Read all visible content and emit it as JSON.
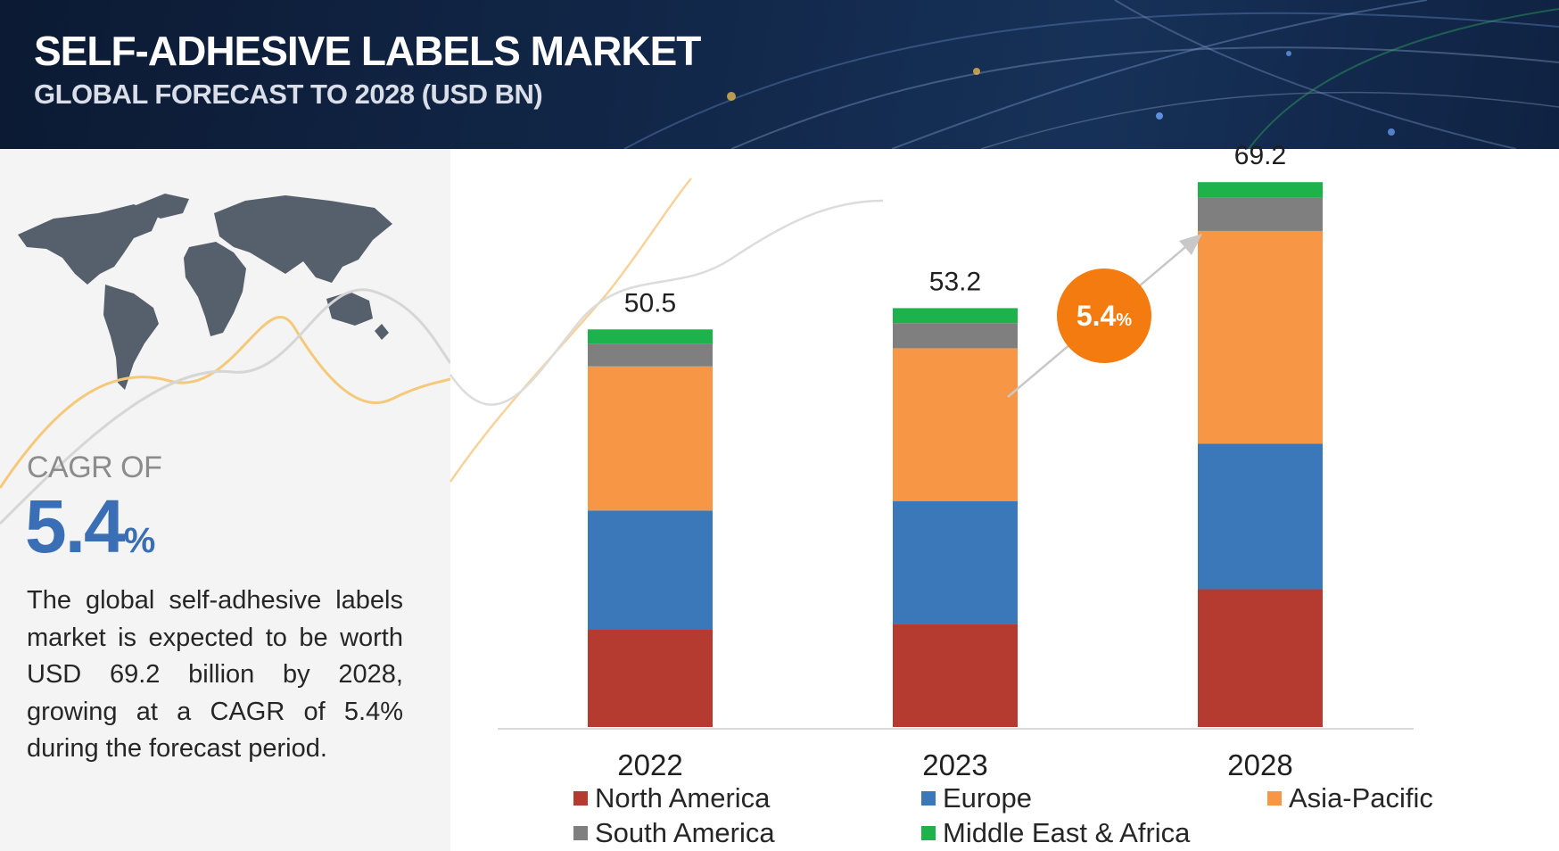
{
  "header": {
    "title": "SELF-ADHESIVE LABELS MARKET",
    "subtitle": "GLOBAL FORECAST TO 2028 (USD BN)"
  },
  "left_panel": {
    "cagr_label": "CAGR OF",
    "cagr_number": "5.4",
    "cagr_percent": "%",
    "description": "The global self-adhesive labels market is expected to be worth USD 69.2 billion by 2028, growing at a CAGR of 5.4% during the forecast period."
  },
  "badge": {
    "number": "5.4",
    "percent": "%",
    "color": "#f47b0f"
  },
  "icons": {
    "map": "world-map-icon",
    "arrow": "growth-arrow-icon"
  },
  "chart_data": {
    "type": "bar",
    "stacked": true,
    "categories": [
      "2022",
      "2023",
      "2028"
    ],
    "totals": [
      "50.5",
      "53.2",
      "69.2"
    ],
    "series": [
      {
        "name": "North America",
        "color": "#b53a2f",
        "values": [
          12.4,
          13.1,
          17.5
        ]
      },
      {
        "name": "Europe",
        "color": "#3a78ba",
        "values": [
          15.1,
          15.6,
          18.5
        ]
      },
      {
        "name": "Asia-Pacific",
        "color": "#f79746",
        "values": [
          18.3,
          19.4,
          27.0
        ]
      },
      {
        "name": "South America",
        "color": "#7f7f7f",
        "values": [
          2.9,
          3.2,
          4.2
        ]
      },
      {
        "name": "Middle East & Africa",
        "color": "#1db24b",
        "values": [
          1.8,
          1.9,
          2.0
        ]
      }
    ],
    "ylim": [
      0,
      75
    ],
    "legend_position": "bottom"
  }
}
